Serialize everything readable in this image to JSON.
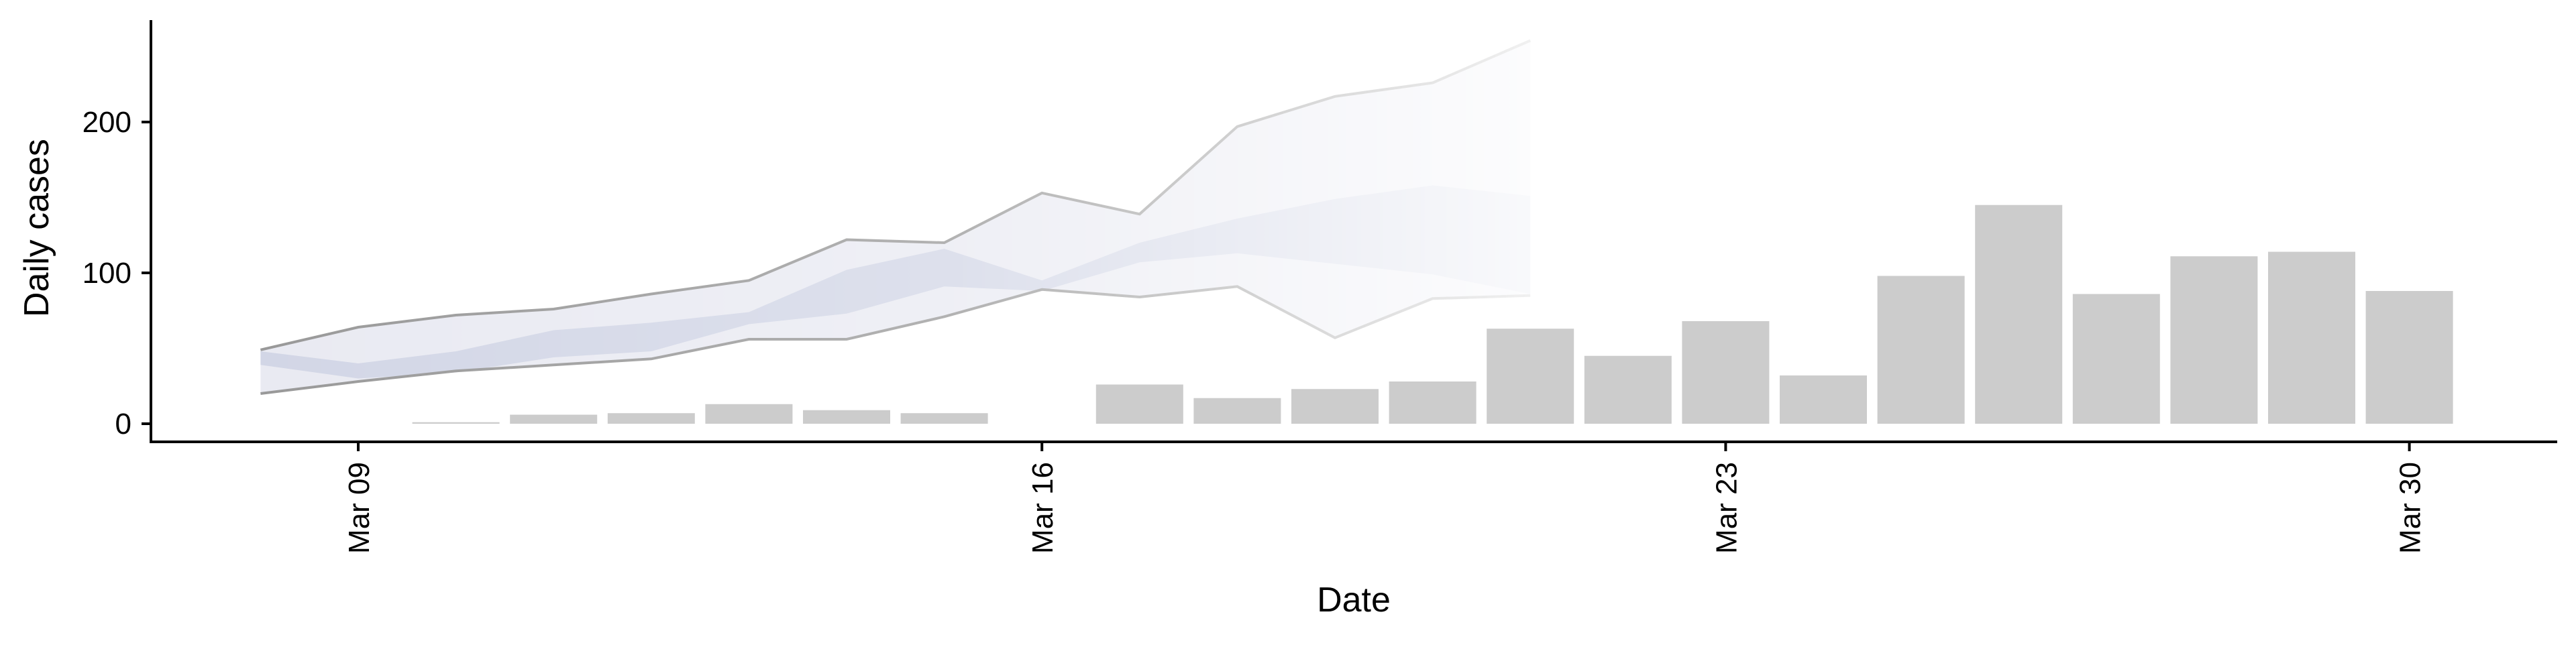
{
  "chart_data": {
    "type": "bar",
    "title": "",
    "xlabel": "Date",
    "ylabel": "Daily cases",
    "x_ticks": [
      "Mar 09",
      "Mar 16",
      "Mar 23",
      "Mar 30"
    ],
    "y_ticks": [
      "0",
      "100",
      "200"
    ],
    "ylim": [
      -12,
      265
    ],
    "grid": false,
    "legend": "none",
    "bars": {
      "name": "",
      "x": [
        "Mar 10",
        "Mar 11",
        "Mar 12",
        "Mar 13",
        "Mar 14",
        "Mar 15",
        "Mar 17",
        "Mar 18",
        "Mar 19",
        "Mar 20",
        "Mar 21",
        "Mar 22",
        "Mar 23",
        "Mar 24",
        "Mar 25",
        "Mar 26",
        "Mar 27",
        "Mar 28",
        "Mar 29",
        "Mar 30",
        "Mar 31"
      ],
      "values": [
        1,
        6,
        7,
        13,
        9,
        7,
        26,
        17,
        23,
        28,
        63,
        45,
        68,
        32,
        98,
        145,
        86,
        111,
        114,
        88,
        0
      ],
      "color": "#cccccc"
    },
    "forecast_band": {
      "x": [
        "Mar 08",
        "Mar 09",
        "Mar 10",
        "Mar 11",
        "Mar 12",
        "Mar 13",
        "Mar 14",
        "Mar 15",
        "Mar 16",
        "Mar 17",
        "Mar 18",
        "Mar 19",
        "Mar 20",
        "Mar 21"
      ],
      "outer_upper": [
        49,
        64,
        72,
        76,
        86,
        95,
        122,
        120,
        153,
        139,
        197,
        217,
        226,
        254
      ],
      "outer_lower": [
        20,
        28,
        35,
        39,
        43,
        56,
        56,
        71,
        89,
        84,
        91,
        57,
        83,
        85
      ],
      "inner_upper": [
        48,
        40,
        48,
        62,
        67,
        74,
        102,
        116,
        95,
        120,
        136,
        149,
        158,
        151
      ],
      "inner_lower": [
        39,
        30,
        34,
        44,
        48,
        66,
        73,
        91,
        88,
        107,
        113,
        106,
        99,
        86
      ],
      "outer_fill": "#e9eaf2",
      "inner_fill": "#d2d6e6",
      "line_color": "#999999"
    }
  }
}
